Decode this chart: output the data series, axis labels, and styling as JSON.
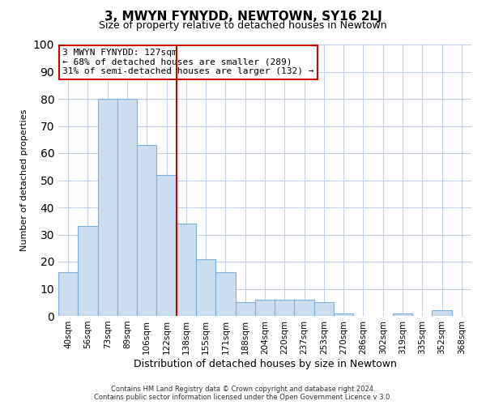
{
  "title": "3, MWYN FYNYDD, NEWTOWN, SY16 2LJ",
  "subtitle": "Size of property relative to detached houses in Newtown",
  "xlabel": "Distribution of detached houses by size in Newtown",
  "ylabel": "Number of detached properties",
  "footer_line1": "Contains HM Land Registry data © Crown copyright and database right 2024.",
  "footer_line2": "Contains public sector information licensed under the Open Government Licence v 3.0.",
  "bar_labels": [
    "40sqm",
    "56sqm",
    "73sqm",
    "89sqm",
    "106sqm",
    "122sqm",
    "138sqm",
    "155sqm",
    "171sqm",
    "188sqm",
    "204sqm",
    "220sqm",
    "237sqm",
    "253sqm",
    "270sqm",
    "286sqm",
    "302sqm",
    "319sqm",
    "335sqm",
    "352sqm",
    "368sqm"
  ],
  "bar_values": [
    16,
    33,
    80,
    80,
    63,
    52,
    34,
    21,
    16,
    5,
    6,
    6,
    6,
    5,
    1,
    0,
    0,
    1,
    0,
    2,
    0
  ],
  "bar_color": "#ccddf0",
  "bar_edgecolor": "#7aaedb",
  "vline_x": 5.5,
  "vline_color": "#cc0000",
  "annotation_title": "3 MWYN FYNYDD: 127sqm",
  "annotation_line2": "← 68% of detached houses are smaller (289)",
  "annotation_line3": "31% of semi-detached houses are larger (132) →",
  "annotation_box_edgecolor": "#cc0000",
  "annotation_box_facecolor": "#ffffff",
  "ylim": [
    0,
    100
  ],
  "background_color": "#ffffff",
  "grid_color": "#c0d0e8",
  "title_fontsize": 11,
  "subtitle_fontsize": 9,
  "xlabel_fontsize": 9,
  "ylabel_fontsize": 8,
  "footer_fontsize": 6,
  "annot_fontsize": 8
}
